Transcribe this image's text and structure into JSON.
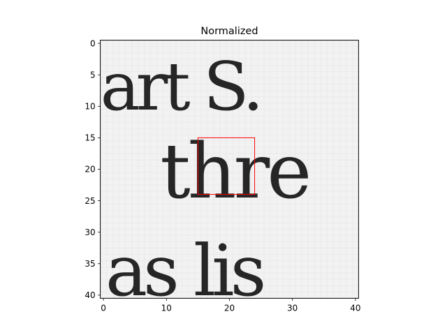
{
  "figure": {
    "title": "Normalized"
  },
  "chart_data": {
    "type": "heatmap",
    "title": "Normalized",
    "colormap": "gray",
    "xlim": [
      -0.5,
      40.5
    ],
    "ylim": [
      40.5,
      -0.5
    ],
    "x_ticks": [
      0,
      10,
      20,
      30,
      40
    ],
    "y_ticks": [
      0,
      5,
      10,
      15,
      20,
      25,
      30,
      35,
      40
    ],
    "x_tick_labels": [
      "0",
      "10",
      "20",
      "30",
      "40"
    ],
    "y_tick_labels": [
      "0",
      "5",
      "10",
      "15",
      "20",
      "25",
      "30",
      "35",
      "40"
    ],
    "highlight_box": {
      "x0": 15,
      "y0": 15,
      "x1": 24,
      "y1": 24,
      "color": "#ff0000"
    },
    "image_text_lines": [
      {
        "text": "art S.",
        "baseline_y": 10.5
      },
      {
        "text": "thre",
        "baseline_y": 24.5
      },
      {
        "text": "as lis",
        "baseline_y": 40
      }
    ]
  },
  "colors": {
    "background": "#ffffff",
    "axes_frame": "#000000",
    "paper": "#f2f2f2",
    "ink": "#262626",
    "highlight": "#ff0000"
  }
}
